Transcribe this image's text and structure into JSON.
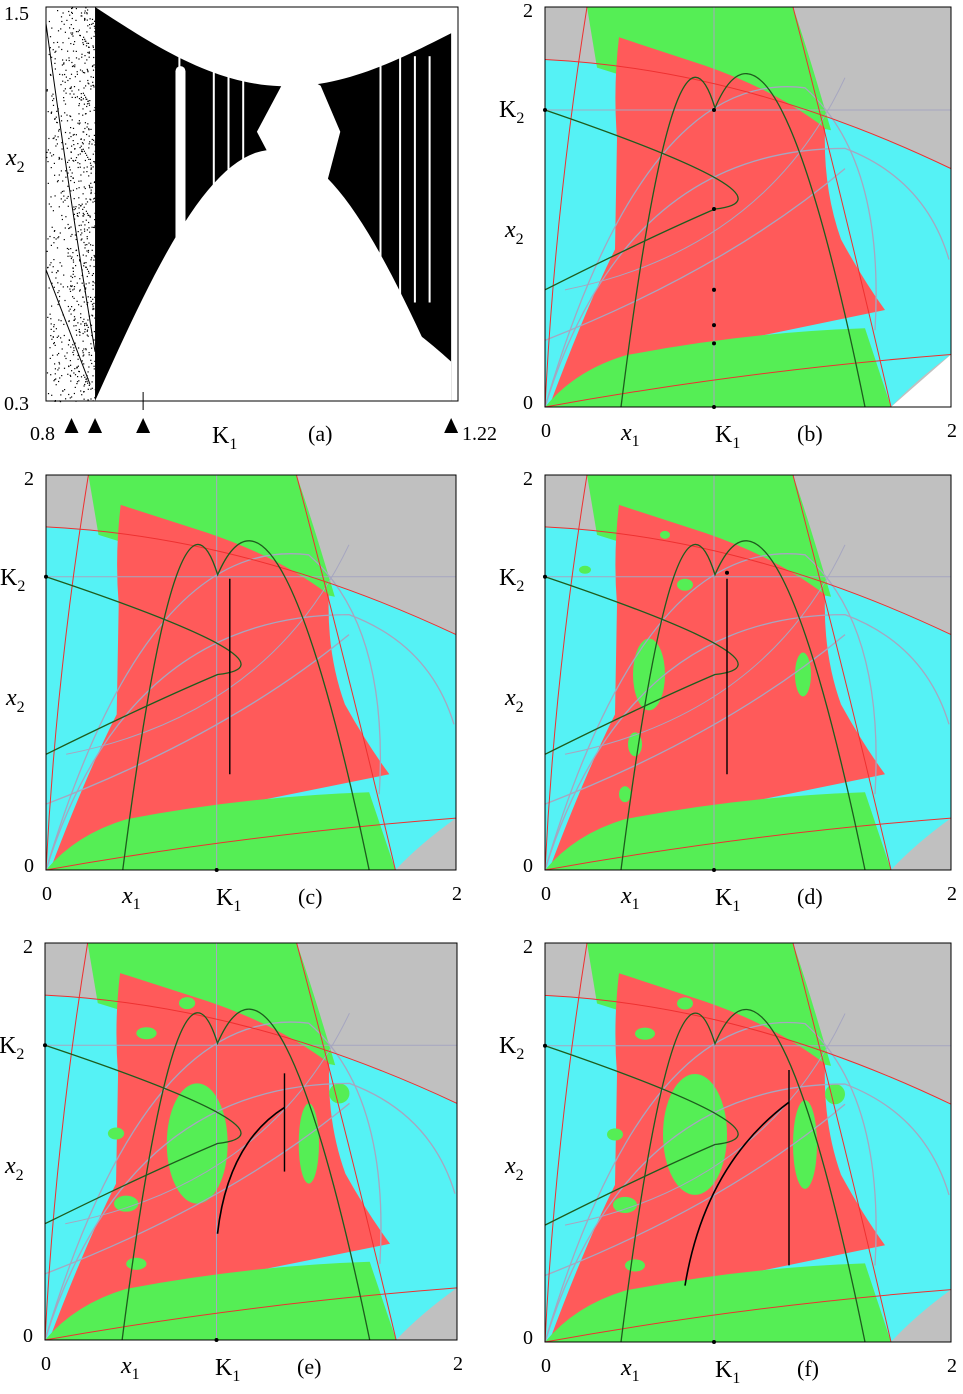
{
  "colors": {
    "red": "#ff5a5a",
    "green": "#55ee55",
    "cyan": "#55f2f5",
    "gray": "#c0c0c0",
    "white": "#ffffff",
    "curve_dark_green": "#1d5c1d",
    "curve_light_gray": "#a6a6c0",
    "curve_boundary_red": "#ee3030",
    "black": "#000000"
  },
  "panel_a": {
    "label": "(a)",
    "x_tick_left": "0.8",
    "x_tick_right": "1.22",
    "y_tick_top": "1.5",
    "y_tick_bottom": "0.3",
    "x_axis_main": "K",
    "x_axis_sub": "1",
    "y_axis_main": "x",
    "y_axis_sub": "2",
    "markers": [
      {
        "type": "filled-triangle",
        "x_value": 0.826
      },
      {
        "type": "filled-triangle",
        "x_value": 0.85
      },
      {
        "type": "filled-triangle",
        "x_value": 0.899
      },
      {
        "type": "filled-triangle",
        "x_value": 1.213
      }
    ]
  },
  "panels": [
    {
      "id": "b",
      "label": "(b)",
      "x_tick_left": "0",
      "x_tick_right": "2",
      "y_tick_top": "2",
      "y_tick_bottom": "0",
      "x1_main": "x",
      "x1_sub": "1",
      "k1_main": "K",
      "k1_sub": "1",
      "x2_main": "x",
      "x2_sub": "2",
      "k2_main": "K",
      "k2_sub": "2",
      "attractor": "points"
    },
    {
      "id": "c",
      "label": "(c)",
      "x_tick_left": "0",
      "x_tick_right": "2",
      "y_tick_top": "2",
      "y_tick_bottom": "0",
      "x1_main": "x",
      "x1_sub": "1",
      "k1_main": "K",
      "k1_sub": "1",
      "x2_main": "x",
      "x2_sub": "2",
      "k2_main": "K",
      "k2_sub": "2",
      "attractor": "vertical-segment"
    },
    {
      "id": "d",
      "label": "(d)",
      "x_tick_left": "0",
      "x_tick_right": "2",
      "y_tick_top": "2",
      "y_tick_bottom": "0",
      "x1_main": "x",
      "x1_sub": "1",
      "k1_main": "K",
      "k1_sub": "1",
      "x2_main": "x",
      "x2_sub": "2",
      "k2_main": "K",
      "k2_sub": "2",
      "attractor": "vertical-segment-dot"
    },
    {
      "id": "e",
      "label": "(e)",
      "x_tick_left": "0",
      "x_tick_right": "2",
      "y_tick_top": "2",
      "y_tick_bottom": "0",
      "x1_main": "x",
      "x1_sub": "1",
      "k1_main": "K",
      "k1_sub": "1",
      "x2_main": "x",
      "x2_sub": "2",
      "k2_main": "K",
      "k2_sub": "2",
      "attractor": "chaotic-arc-short"
    },
    {
      "id": "f",
      "label": "(f)",
      "x_tick_left": "0",
      "x_tick_right": "2",
      "y_tick_top": "2",
      "y_tick_bottom": "0",
      "x1_main": "x",
      "x1_sub": "1",
      "k1_main": "K",
      "k1_sub": "1",
      "x2_main": "x",
      "x2_sub": "2",
      "k2_main": "K",
      "k2_sub": "2",
      "attractor": "chaotic-arc-long"
    }
  ]
}
